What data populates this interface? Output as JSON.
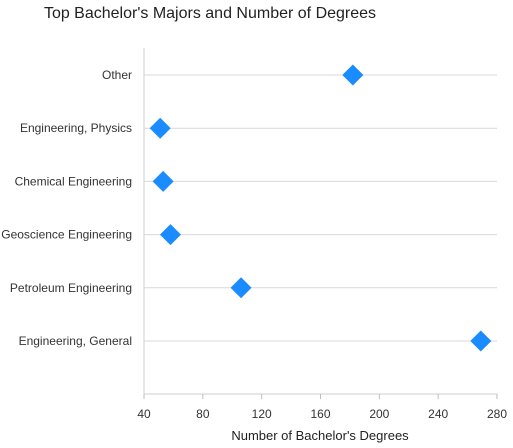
{
  "chart_data": {
    "type": "scatter",
    "title": "Top Bachelor's Majors and Number of Degrees",
    "xlabel": "Number of Bachelor's Degrees",
    "ylabel": "",
    "xlim": [
      40,
      280
    ],
    "xticks": [
      40,
      80,
      120,
      160,
      200,
      240,
      280
    ],
    "categories": [
      "Other",
      "Engineering, Physics",
      "Chemical Engineering",
      "Geoscience Engineering",
      "Petroleum Engineering",
      "Engineering, General"
    ],
    "values": [
      182,
      51,
      53,
      58,
      106,
      269
    ],
    "marker": "diamond",
    "color": "#1a8cff",
    "grid": "horizontal"
  }
}
